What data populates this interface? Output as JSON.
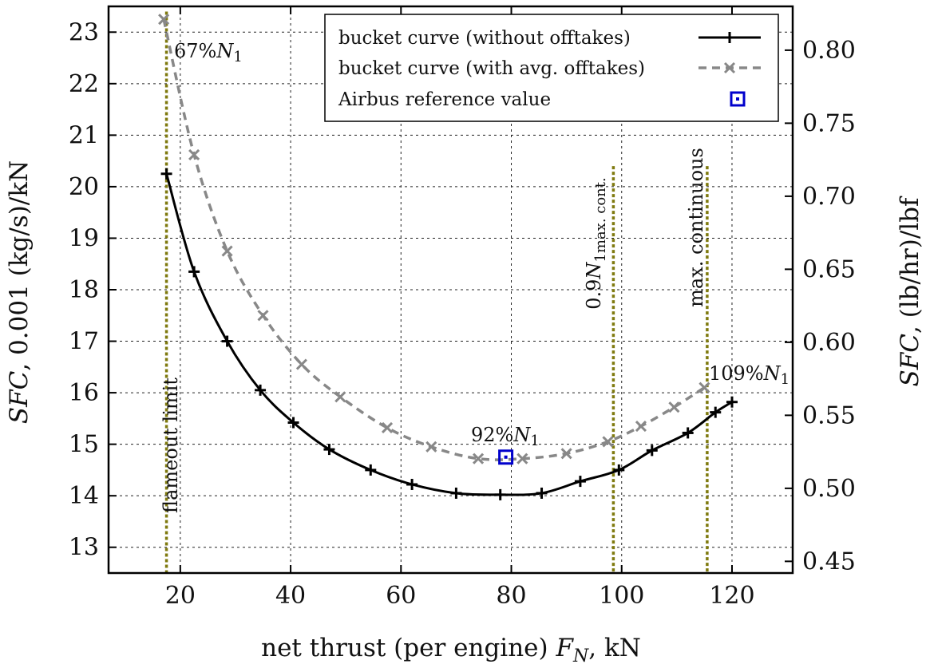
{
  "chart_data": {
    "type": "line",
    "xlabel_main": "net thrust (per engine) ",
    "xlabel_sym": "F",
    "xlabel_sub": "N",
    "xlabel_unit": ", kN",
    "ylabel_left_sym": "SFC",
    "ylabel_left_rest": ", 0.001 (kg/s)/kN",
    "ylabel_right_sym": "SFC",
    "ylabel_right_rest": ", (lb/hr)/lbf",
    "xlim": [
      7,
      131
    ],
    "ylim": [
      12.5,
      23.5
    ],
    "y2lim": [
      0.442,
      0.83
    ],
    "xticks": [
      20,
      40,
      60,
      80,
      100,
      120
    ],
    "yticks": [
      13,
      14,
      15,
      16,
      17,
      18,
      19,
      20,
      21,
      22,
      23
    ],
    "y2ticks": [
      "0.45",
      "0.50",
      "0.55",
      "0.60",
      "0.65",
      "0.70",
      "0.75",
      "0.80"
    ],
    "grid": true,
    "legend_position": "top-right",
    "series": [
      {
        "name": "bucket curve (without offtakes)",
        "color": "#000000",
        "style": "solid",
        "marker": "plus",
        "x": [
          17.5,
          22.5,
          28.5,
          34.5,
          40.5,
          47,
          54.5,
          62,
          70,
          78,
          85.5,
          92.5,
          99.5,
          105.5,
          112,
          117,
          120
        ],
        "y": [
          20.25,
          18.35,
          17.0,
          16.05,
          15.42,
          14.9,
          14.5,
          14.22,
          14.05,
          14.02,
          14.05,
          14.28,
          14.5,
          14.88,
          15.22,
          15.62,
          15.82
        ]
      },
      {
        "name": "bucket curve (with avg. offtakes)",
        "color": "#888888",
        "style": "dashed",
        "marker": "cross",
        "x": [
          17,
          22.5,
          28.5,
          35,
          42,
          49,
          57.5,
          65.5,
          74,
          82,
          90,
          97.5,
          103.5,
          109.5,
          115
        ],
        "y": [
          23.25,
          20.62,
          18.75,
          17.5,
          16.55,
          15.92,
          15.32,
          14.95,
          14.72,
          14.72,
          14.82,
          15.05,
          15.35,
          15.72,
          16.1
        ]
      }
    ],
    "reference": {
      "name": "Airbus reference value",
      "color": "#0000cc",
      "x": 79,
      "y": 14.75
    },
    "vlines": [
      {
        "x": 17.5,
        "y_top": 23.4,
        "label": "flameout limit"
      },
      {
        "x": 98.5,
        "y_top": 20.4,
        "label_main": "0.9",
        "label_sym": "N",
        "label_sub": "1",
        "label_subscript": "max. cont."
      },
      {
        "x": 115.5,
        "y_top": 20.4,
        "label": "max. continuous"
      }
    ],
    "annotations": [
      {
        "id": "n67",
        "x": 19.5,
        "y": 22.88,
        "prefix": "67%",
        "sym": "N",
        "sub": "1"
      },
      {
        "id": "n92",
        "x": 74,
        "y": 15.05,
        "prefix": "92%",
        "sym": "N",
        "sub": "1"
      },
      {
        "id": "n109",
        "x": 110,
        "y": 16.15,
        "prefix": "109%",
        "sym": "N",
        "sub": "1"
      }
    ],
    "vline_color": "#7f7a0f"
  }
}
